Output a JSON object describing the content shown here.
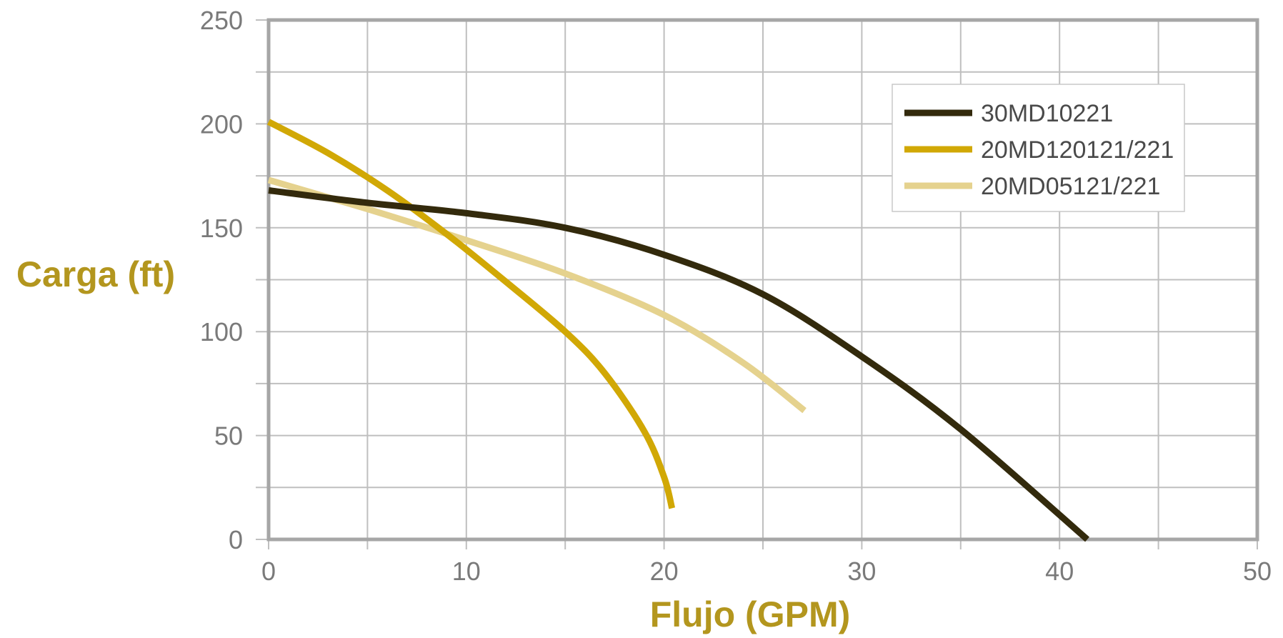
{
  "chart_data": {
    "type": "line",
    "title": "",
    "xlabel": "Flujo (GPM)",
    "ylabel": "Carga (ft)",
    "xlim": [
      0,
      50
    ],
    "ylim": [
      0,
      250
    ],
    "x_ticks": [
      0,
      10,
      20,
      30,
      40,
      50
    ],
    "x_tick_labels": [
      "0",
      "10",
      "20",
      "30",
      "40",
      "50"
    ],
    "y_ticks": [
      0,
      50,
      100,
      150,
      200,
      250
    ],
    "y_tick_labels": [
      "0",
      "50",
      "100",
      "150",
      "200",
      "250"
    ],
    "grid": true,
    "legend_position": "top-right",
    "series": [
      {
        "name": "30MD10221",
        "color": "#332a0c",
        "points": [
          [
            0,
            168
          ],
          [
            5,
            162
          ],
          [
            10,
            157
          ],
          [
            15,
            150
          ],
          [
            20,
            137
          ],
          [
            25,
            118
          ],
          [
            30,
            88
          ],
          [
            35,
            53
          ],
          [
            41.4,
            0
          ]
        ]
      },
      {
        "name": "20MD120121/221",
        "color": "#d1a805",
        "points": [
          [
            0,
            201
          ],
          [
            3,
            186
          ],
          [
            6,
            168
          ],
          [
            9,
            147
          ],
          [
            12,
            124
          ],
          [
            15,
            100
          ],
          [
            17,
            80
          ],
          [
            19,
            52
          ],
          [
            20,
            30
          ],
          [
            20.4,
            15
          ]
        ]
      },
      {
        "name": "20MD05121/221",
        "color": "#e5d28e",
        "points": [
          [
            0,
            173
          ],
          [
            5,
            159
          ],
          [
            10,
            144
          ],
          [
            15,
            128
          ],
          [
            20,
            108
          ],
          [
            24,
            85
          ],
          [
            27.1,
            62
          ]
        ]
      }
    ]
  },
  "colors": {
    "axis_title": "#b3961e",
    "grid": "#bfbfbf",
    "axis": "#a6a6a6",
    "tick_label": "#7a7a7a",
    "legend_border": "#c8c8c8"
  }
}
